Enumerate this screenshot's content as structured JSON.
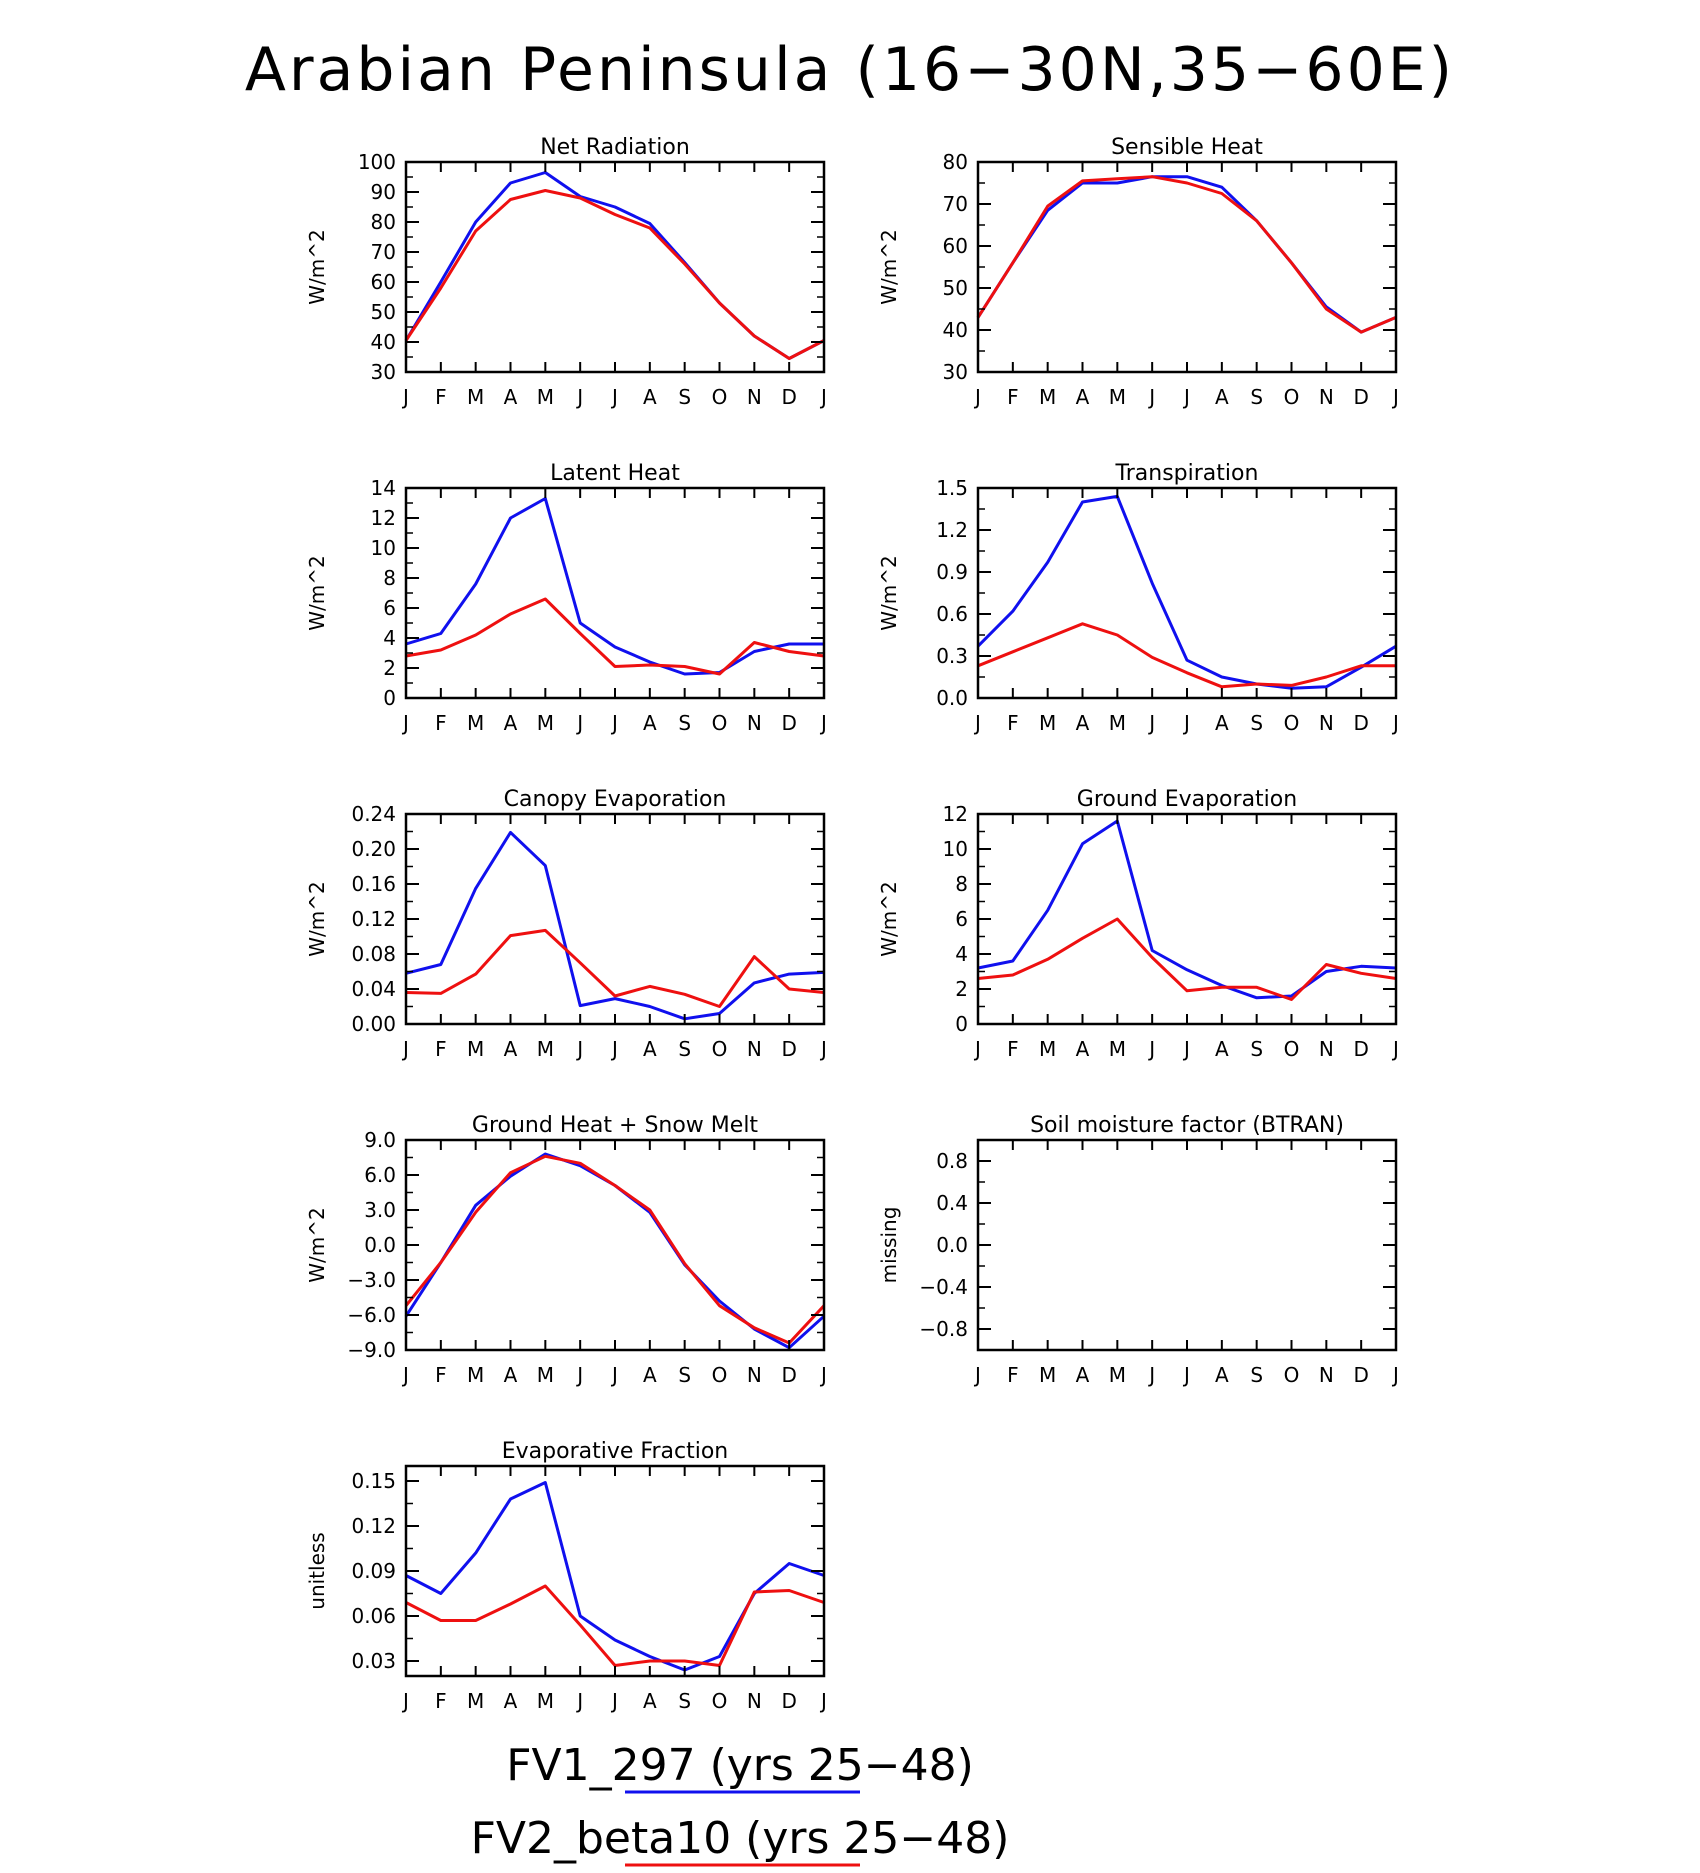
{
  "figure_title": "Arabian Peninsula (16−30N,35−60E)",
  "months": [
    "J",
    "F",
    "M",
    "A",
    "M",
    "J",
    "J",
    "A",
    "S",
    "O",
    "N",
    "D",
    "J"
  ],
  "colors": {
    "FV1_297": "#1010ee",
    "FV2_beta10": "#ee1010"
  },
  "legend": [
    {
      "label": "FV1_297 (yrs 25−48)",
      "color": "#1010ee"
    },
    {
      "label": "FV2_beta10 (yrs 25−48)",
      "color": "#ee1010"
    }
  ],
  "chart_data": [
    {
      "type": "line",
      "title": "Net Radiation",
      "ylabel": "W/m^2",
      "ylim": [
        30,
        100
      ],
      "yticks": [
        "100",
        "90",
        "80",
        "70",
        "60",
        "50",
        "40",
        "30"
      ],
      "series": [
        {
          "name": "FV1_297 (yrs 25−48)",
          "values": [
            40.5,
            60,
            80,
            93,
            96.5,
            88.5,
            85,
            79.5,
            66.5,
            53,
            42,
            34.5,
            40.5
          ]
        },
        {
          "name": "FV2_beta10 (yrs 25−48)",
          "values": [
            40.5,
            58,
            77,
            87.5,
            90.5,
            88,
            82.5,
            78,
            66,
            53,
            42,
            34.5,
            40.5
          ]
        }
      ]
    },
    {
      "type": "line",
      "title": "Sensible Heat",
      "ylabel": "W/m^2",
      "ylim": [
        30,
        80
      ],
      "yticks": [
        "80",
        "70",
        "60",
        "50",
        "40",
        "30"
      ],
      "series": [
        {
          "name": "FV1_297 (yrs 25−48)",
          "values": [
            43,
            56,
            68.5,
            75,
            75,
            76.5,
            76.5,
            74,
            66,
            56,
            45.5,
            39.5,
            43
          ]
        },
        {
          "name": "FV2_beta10 (yrs 25−48)",
          "values": [
            43,
            56,
            69.5,
            75.5,
            76,
            76.5,
            75,
            72.5,
            66,
            56,
            45,
            39.5,
            43
          ]
        }
      ]
    },
    {
      "type": "line",
      "title": "Latent Heat",
      "ylabel": "W/m^2",
      "ylim": [
        0,
        14
      ],
      "yticks": [
        "14",
        "12",
        "10",
        "8",
        "6",
        "4",
        "2",
        "0"
      ],
      "series": [
        {
          "name": "FV1_297 (yrs 25−48)",
          "values": [
            3.6,
            4.3,
            7.6,
            12,
            13.3,
            5,
            3.4,
            2.4,
            1.6,
            1.7,
            3.1,
            3.6,
            3.6
          ]
        },
        {
          "name": "FV2_beta10 (yrs 25−48)",
          "values": [
            2.8,
            3.2,
            4.2,
            5.6,
            6.6,
            4.3,
            2.1,
            2.2,
            2.1,
            1.6,
            3.7,
            3.1,
            2.8
          ]
        }
      ]
    },
    {
      "type": "line",
      "title": "Transpiration",
      "ylabel": "W/m^2",
      "ylim": [
        0,
        1.5
      ],
      "yticks": [
        "1.5",
        "1.2",
        "0.9",
        "0.6",
        "0.3",
        "0.0"
      ],
      "series": [
        {
          "name": "FV1_297 (yrs 25−48)",
          "values": [
            0.37,
            0.62,
            0.97,
            1.4,
            1.44,
            0.82,
            0.27,
            0.15,
            0.1,
            0.07,
            0.08,
            0.22,
            0.37
          ]
        },
        {
          "name": "FV2_beta10 (yrs 25−48)",
          "values": [
            0.23,
            0.33,
            0.43,
            0.53,
            0.45,
            0.29,
            0.18,
            0.08,
            0.1,
            0.09,
            0.15,
            0.23,
            0.23
          ]
        }
      ]
    },
    {
      "type": "line",
      "title": "Canopy Evaporation",
      "ylabel": "W/m^2",
      "ylim": [
        0,
        0.24
      ],
      "yticks": [
        "0.24",
        "0.20",
        "0.16",
        "0.12",
        "0.08",
        "0.04",
        "0.00"
      ],
      "series": [
        {
          "name": "FV1_297 (yrs 25−48)",
          "values": [
            0.058,
            0.068,
            0.155,
            0.219,
            0.181,
            0.021,
            0.029,
            0.02,
            0.006,
            0.012,
            0.047,
            0.057,
            0.059
          ]
        },
        {
          "name": "FV2_beta10 (yrs 25−48)",
          "values": [
            0.036,
            0.035,
            0.057,
            0.101,
            0.107,
            0.07,
            0.032,
            0.043,
            0.034,
            0.02,
            0.077,
            0.04,
            0.036
          ]
        }
      ]
    },
    {
      "type": "line",
      "title": "Ground Evaporation",
      "ylabel": "W/m^2",
      "ylim": [
        0,
        12
      ],
      "yticks": [
        "12",
        "10",
        "8",
        "6",
        "4",
        "2",
        "0"
      ],
      "series": [
        {
          "name": "FV1_297 (yrs 25−48)",
          "values": [
            3.2,
            3.6,
            6.5,
            10.3,
            11.6,
            4.2,
            3.1,
            2.2,
            1.5,
            1.6,
            3,
            3.3,
            3.2
          ]
        },
        {
          "name": "FV2_beta10 (yrs 25−48)",
          "values": [
            2.6,
            2.8,
            3.7,
            4.9,
            6,
            3.8,
            1.9,
            2.1,
            2.1,
            1.4,
            3.4,
            2.9,
            2.6
          ]
        }
      ]
    },
    {
      "type": "line",
      "title": "Ground Heat + Snow Melt",
      "ylabel": "W/m^2",
      "ylim": [
        -9,
        9
      ],
      "yticks": [
        "9.0",
        "6.0",
        "3.0",
        "0.0",
        "−3.0",
        "−6.0",
        "−9.0"
      ],
      "series": [
        {
          "name": "FV1_297 (yrs 25−48)",
          "values": [
            -6.1,
            -1.5,
            3.4,
            5.9,
            7.8,
            6.8,
            5.1,
            2.8,
            -1.7,
            -4.8,
            -7.2,
            -8.8,
            -6.1
          ]
        },
        {
          "name": "FV2_beta10 (yrs 25−48)",
          "values": [
            -5.2,
            -1.5,
            2.8,
            6.2,
            7.6,
            7,
            5.1,
            3,
            -1.6,
            -5.2,
            -7.1,
            -8.4,
            -5.2
          ]
        }
      ]
    },
    {
      "type": "line",
      "title": "Soil moisture factor (BTRAN)",
      "ylabel": "missing",
      "ylim": [
        -1,
        1
      ],
      "yticks": [
        "0.8",
        "0.4",
        "0.0",
        "−0.4",
        "−0.8"
      ],
      "ytick_values": [
        0.8,
        0.4,
        0,
        -0.4,
        -0.8
      ],
      "series": []
    },
    {
      "type": "line",
      "title": "Evaporative Fraction",
      "ylabel": "unitless",
      "ylim": [
        0.02,
        0.16
      ],
      "yticks": [
        "0.15",
        "0.12",
        "0.09",
        "0.06",
        "0.03"
      ],
      "ytick_values": [
        0.15,
        0.12,
        0.09,
        0.06,
        0.03
      ],
      "series": [
        {
          "name": "FV1_297 (yrs 25−48)",
          "values": [
            0.087,
            0.075,
            0.102,
            0.138,
            0.149,
            0.06,
            0.044,
            0.033,
            0.024,
            0.033,
            0.075,
            0.095,
            0.087
          ]
        },
        {
          "name": "FV2_beta10 (yrs 25−48)",
          "values": [
            0.069,
            0.057,
            0.057,
            0.068,
            0.08,
            0.054,
            0.027,
            0.03,
            0.03,
            0.027,
            0.076,
            0.077,
            0.069
          ]
        }
      ]
    }
  ]
}
